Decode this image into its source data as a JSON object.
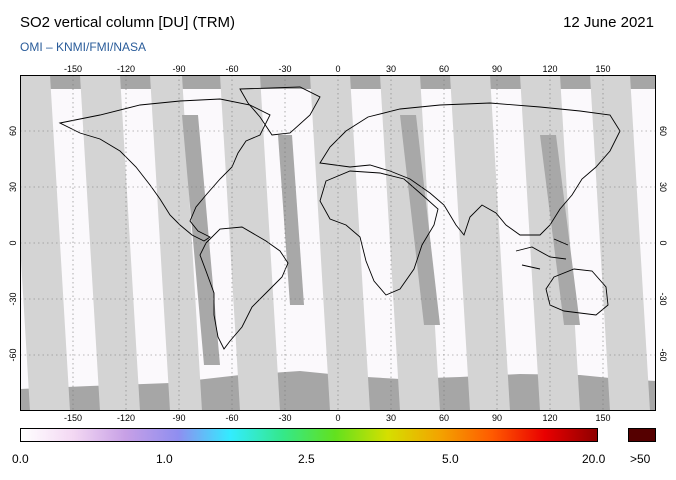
{
  "header": {
    "title": "SO2 vertical column [DU] (TRM)",
    "date": "12 June 2021",
    "credit": "OMI  –  KNMI/FMI/NASA"
  },
  "map": {
    "lon_ticks": [
      "-150",
      "-120",
      "-90",
      "-60",
      "-30",
      "0",
      "30",
      "60",
      "90",
      "120",
      "150"
    ],
    "lat_ticks": [
      "60",
      "30",
      "0",
      "-30",
      "-60"
    ],
    "projection": "equirectangular",
    "graticule": "dotted"
  },
  "colorbar": {
    "labels": [
      "0.0",
      "1.0",
      "2.5",
      "5.0",
      "20.0"
    ],
    "overflow_label": ">50",
    "colors": [
      "#ffffff",
      "#f3d8f3",
      "#c7a0e6",
      "#8f8ef0",
      "#33ecff",
      "#34e88a",
      "#62e11e",
      "#d5df00",
      "#f3a300",
      "#ff5a00",
      "#e90000",
      "#8f0000"
    ],
    "overflow_color": "#550000"
  },
  "colors": {
    "swath": "#d4d4d4",
    "swath_dark": "#a8a8a8",
    "polar": "#a6a6a6",
    "credit": "#2a5c9a"
  }
}
